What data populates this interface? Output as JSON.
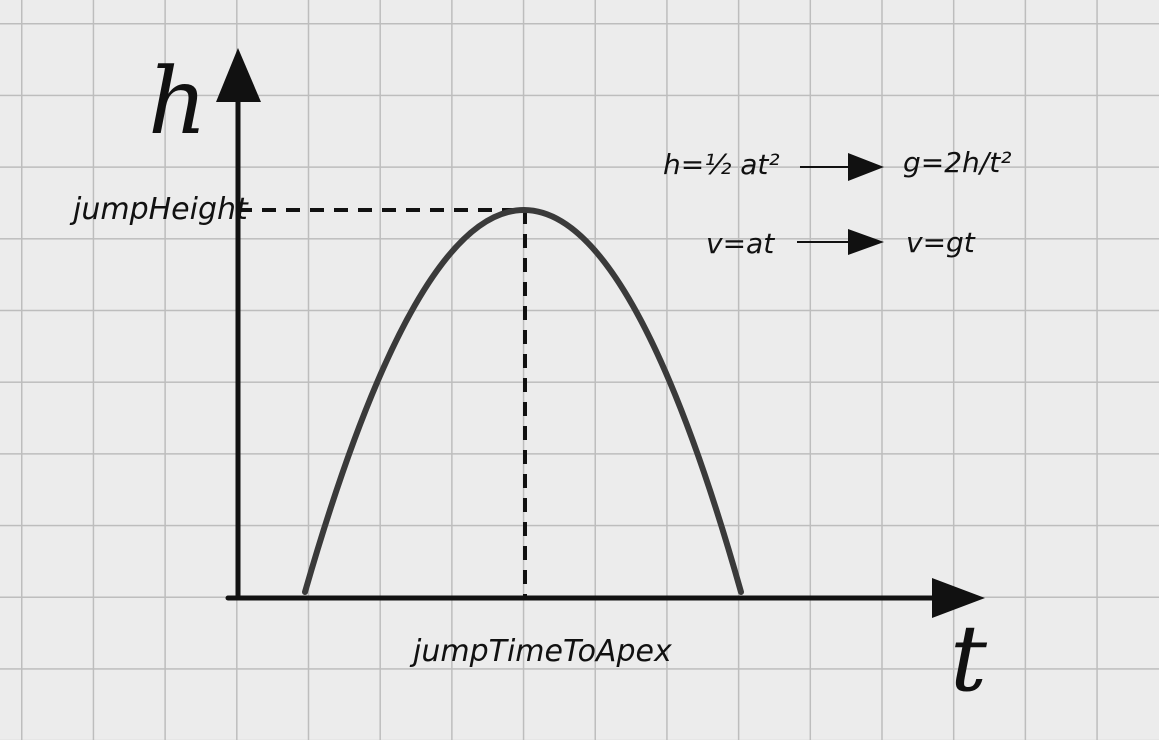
{
  "axes": {
    "y_label": "h",
    "x_label": "t"
  },
  "markers": {
    "apex_height_label": "jumpHeight",
    "apex_time_label": "jumpTimeToApex"
  },
  "formulas": [
    {
      "from": "h=½ at²",
      "to": "g=2h/t²"
    },
    {
      "from": "v=at",
      "to": "v=gt"
    }
  ],
  "colors": {
    "background": "#ececec",
    "grid": "#bdbdbd",
    "ink": "#111111",
    "curve": "#3a3a3a"
  }
}
